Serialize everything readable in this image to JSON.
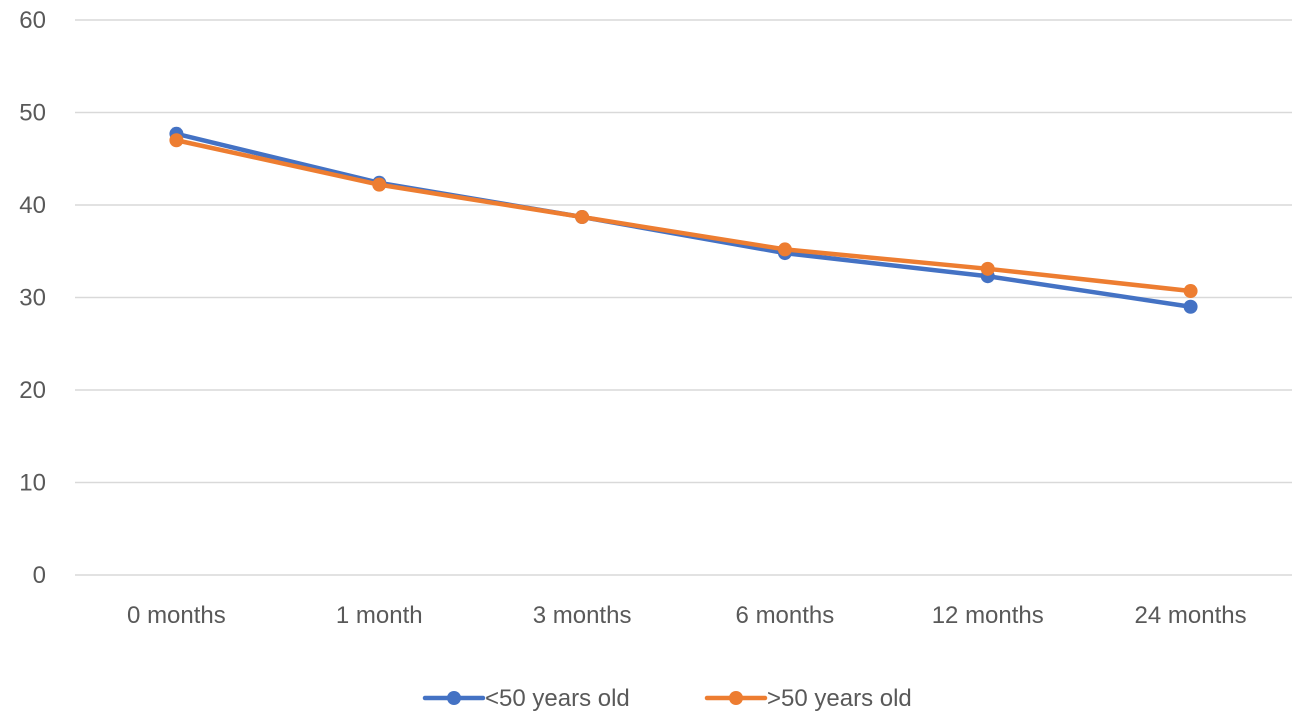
{
  "chart_data": {
    "type": "line",
    "title": "",
    "xlabel": "",
    "ylabel": "",
    "categories": [
      "0 months",
      "1 month",
      "3 months",
      "6 months",
      "12 months",
      "24 months"
    ],
    "ylim": [
      0,
      60
    ],
    "yticks": [
      0,
      10,
      20,
      30,
      40,
      50,
      60
    ],
    "grid": true,
    "legend_position": "bottom",
    "series": [
      {
        "name": "<50 years old",
        "color": "#4472C4",
        "values": [
          47.7,
          42.4,
          38.7,
          34.8,
          32.3,
          29.0
        ]
      },
      {
        "name": ">50 years old",
        "color": "#ED7D31",
        "values": [
          47.0,
          42.2,
          38.7,
          35.2,
          33.1,
          30.7
        ]
      }
    ]
  }
}
